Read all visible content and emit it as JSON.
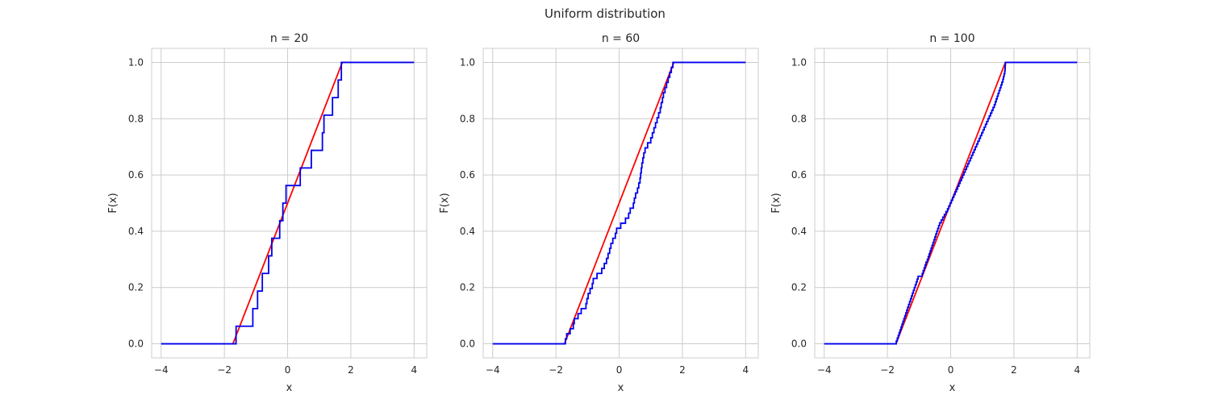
{
  "figure": {
    "suptitle": "Uniform distribution"
  },
  "colors": {
    "theoretical": "#ff0000",
    "empirical": "#0000ee",
    "grid": "#cccccc",
    "text": "#262626"
  },
  "chart_data": [
    {
      "type": "line",
      "title": "n = 20",
      "xlabel": "x",
      "ylabel": "F(x)",
      "xlim": [
        -4.3,
        4.4
      ],
      "ylim": [
        -0.05,
        1.05
      ],
      "xticks": [
        -4,
        -2,
        0,
        2,
        4
      ],
      "xtick_labels": [
        "−4",
        "−2",
        "0",
        "2",
        "4"
      ],
      "yticks": [
        0.0,
        0.2,
        0.4,
        0.6,
        0.8,
        1.0
      ],
      "ytick_labels": [
        "0.0",
        "0.2",
        "0.4",
        "0.6",
        "0.8",
        "1.0"
      ],
      "grid": true,
      "theoretical": {
        "x": [
          -1.73,
          1.73
        ],
        "y": [
          0,
          1
        ]
      },
      "empirical": {
        "x_min": -4,
        "x_max": 4,
        "jumps": [
          -1.63,
          -1.1,
          -0.95,
          -0.8,
          -0.6,
          -0.5,
          -0.25,
          -0.15,
          -0.05,
          0.4,
          0.75,
          1.1,
          1.15,
          1.42,
          1.6,
          1.7
        ]
      }
    },
    {
      "type": "line",
      "title": "n = 60",
      "xlabel": "x",
      "ylabel": "F(x)",
      "xlim": [
        -4.3,
        4.4
      ],
      "ylim": [
        -0.05,
        1.05
      ],
      "xticks": [
        -4,
        -2,
        0,
        2,
        4
      ],
      "xtick_labels": [
        "−4",
        "−2",
        "0",
        "2",
        "4"
      ],
      "yticks": [
        0.0,
        0.2,
        0.4,
        0.6,
        0.8,
        1.0
      ],
      "ytick_labels": [
        "0.0",
        "0.2",
        "0.4",
        "0.6",
        "0.8",
        "1.0"
      ],
      "grid": true,
      "theoretical": {
        "x": [
          -1.73,
          1.73
        ],
        "y": [
          0,
          1
        ]
      },
      "empirical": {
        "x_min": -4,
        "x_max": 4,
        "jumps": [
          -1.7,
          -1.66,
          -1.55,
          -1.45,
          -1.42,
          -1.3,
          -1.2,
          -1.05,
          -1.02,
          -0.98,
          -0.92,
          -0.85,
          -0.82,
          -0.7,
          -0.55,
          -0.47,
          -0.4,
          -0.35,
          -0.3,
          -0.26,
          -0.2,
          -0.12,
          -0.08,
          0.05,
          0.2,
          0.3,
          0.35,
          0.45,
          0.48,
          0.52,
          0.58,
          0.62,
          0.66,
          0.68,
          0.7,
          0.72,
          0.75,
          0.78,
          0.82,
          0.9,
          1.0,
          1.05,
          1.1,
          1.15,
          1.2,
          1.25,
          1.3,
          1.33,
          1.37,
          1.4,
          1.45,
          1.5,
          1.55,
          1.6,
          1.65,
          1.7
        ]
      }
    },
    {
      "type": "line",
      "title": "n = 100",
      "xlabel": "x",
      "ylabel": "F(x)",
      "xlim": [
        -4.3,
        4.4
      ],
      "ylim": [
        -0.05,
        1.05
      ],
      "xticks": [
        -4,
        -2,
        0,
        2,
        4
      ],
      "xtick_labels": [
        "−4",
        "−2",
        "0",
        "2",
        "4"
      ],
      "yticks": [
        0.0,
        0.2,
        0.4,
        0.6,
        0.8,
        1.0
      ],
      "ytick_labels": [
        "0.0",
        "0.2",
        "0.4",
        "0.6",
        "0.8",
        "1.0"
      ],
      "grid": true,
      "theoretical": {
        "x": [
          -1.73,
          1.73
        ],
        "y": [
          0,
          1
        ]
      },
      "empirical": {
        "x_min": -4,
        "x_max": 4,
        "jumps": [
          -1.72,
          -1.69,
          -1.66,
          -1.63,
          -1.6,
          -1.57,
          -1.54,
          -1.51,
          -1.48,
          -1.45,
          -1.42,
          -1.39,
          -1.36,
          -1.33,
          -1.3,
          -1.27,
          -1.24,
          -1.21,
          -1.18,
          -1.15,
          -1.12,
          -1.09,
          -1.06,
          -1.03,
          -0.9,
          -0.87,
          -0.84,
          -0.81,
          -0.78,
          -0.74,
          -0.71,
          -0.68,
          -0.65,
          -0.62,
          -0.59,
          -0.56,
          -0.53,
          -0.5,
          -0.47,
          -0.44,
          -0.41,
          -0.38,
          -0.35,
          -0.3,
          -0.25,
          -0.2,
          -0.15,
          -0.1,
          -0.06,
          -0.02,
          0.02,
          0.06,
          0.1,
          0.14,
          0.18,
          0.22,
          0.26,
          0.3,
          0.34,
          0.38,
          0.42,
          0.46,
          0.5,
          0.54,
          0.58,
          0.62,
          0.66,
          0.7,
          0.74,
          0.78,
          0.82,
          0.86,
          0.9,
          0.94,
          0.98,
          1.02,
          1.06,
          1.1,
          1.14,
          1.18,
          1.22,
          1.26,
          1.3,
          1.34,
          1.38,
          1.41,
          1.44,
          1.47,
          1.5,
          1.53,
          1.56,
          1.59,
          1.62,
          1.65,
          1.67,
          1.69,
          1.71,
          1.72,
          1.725,
          1.73
        ]
      }
    }
  ]
}
